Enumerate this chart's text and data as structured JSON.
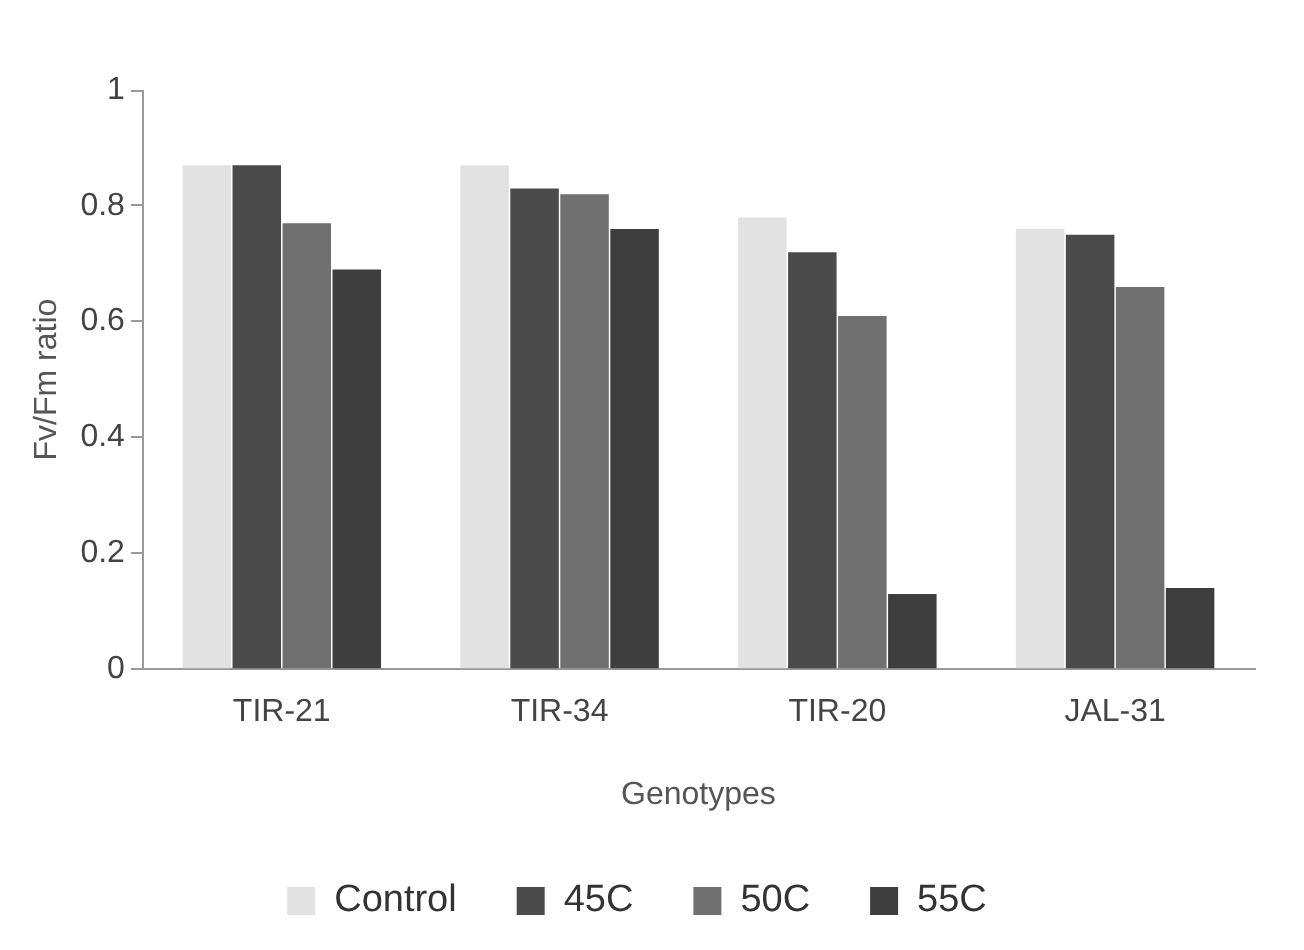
{
  "chart_data": {
    "type": "bar",
    "xlabel": "Genotypes",
    "ylabel": "Fv/Fm ratio",
    "categories": [
      "TIR-21",
      "TIR-34",
      "TIR-20",
      "JAL-31"
    ],
    "series": [
      {
        "name": "Control",
        "color": "#e2e2e2",
        "values": [
          0.87,
          0.87,
          0.78,
          0.76
        ]
      },
      {
        "name": "45C",
        "color": "#4a4a4a",
        "values": [
          0.87,
          0.83,
          0.72,
          0.75
        ]
      },
      {
        "name": "50C",
        "color": "#707070",
        "values": [
          0.77,
          0.82,
          0.61,
          0.66
        ]
      },
      {
        "name": "55C",
        "color": "#3e3e3e",
        "values": [
          0.69,
          0.76,
          0.13,
          0.14
        ]
      }
    ],
    "ylim": [
      0,
      1
    ],
    "yticks": [
      0,
      0.2,
      0.4,
      0.6,
      0.8,
      1
    ],
    "grid": false,
    "legend": "bottom"
  }
}
